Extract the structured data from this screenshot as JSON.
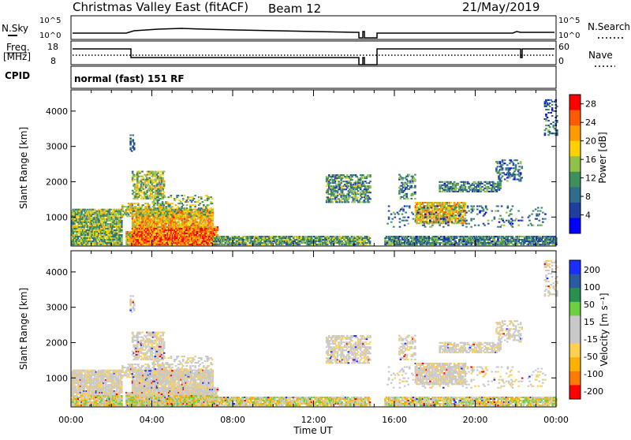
{
  "header": {
    "station": "Christmas Valley East (fitACF)",
    "beam": "Beam 12",
    "date": "21/May/2019"
  },
  "labels": {
    "nsky": "N.Sky",
    "nsearch": "N.Search",
    "freq_line1": "Freq.",
    "freq_line2": "[MHz]",
    "nave": "Nave",
    "cpid": "CPID",
    "cpid_value": "normal (fast) 151 RF",
    "noise_tick_hi": "10^5",
    "noise_tick_lo": "10^0",
    "freq_tick_hi": "18",
    "freq_tick_lo": "8",
    "nave_tick_hi": "60",
    "nave_tick_lo": "0"
  },
  "colors": {
    "power_scale": [
      "#0000ff",
      "#1f3fa0",
      "#2e6e8a",
      "#3f8f5a",
      "#8fc04a",
      "#ffd000",
      "#ff9a00",
      "#ff5a00",
      "#ff0000"
    ],
    "velocity_scale": [
      "#ff0000",
      "#ff7a00",
      "#ffb000",
      "#ffd050",
      "#c8c8c8",
      "#c8c8c8",
      "#6ccf40",
      "#2a8f50",
      "#2a5aa0",
      "#1a2fff"
    ]
  },
  "chart_data": [
    {
      "type": "heatmap",
      "name": "power",
      "xlabel": "Time UT",
      "ylabel": "Slant Range [km]",
      "x_ticks": [
        "00:00",
        "04:00",
        "08:00",
        "12:00",
        "16:00",
        "20:00",
        "00:00"
      ],
      "y_ticks": [
        1000,
        2000,
        3000,
        4000
      ],
      "ylim": [
        180,
        4600
      ],
      "xlim_hours": [
        0,
        24
      ],
      "colorbar_label": "Power [dB]",
      "colorbar_ticks": [
        4,
        8,
        12,
        16,
        20,
        24,
        28
      ],
      "colorbar_range": [
        0,
        30
      ]
    },
    {
      "type": "heatmap",
      "name": "velocity",
      "xlabel": "Time UT",
      "ylabel": "Slant Range [km]",
      "x_ticks": [
        "00:00",
        "04:00",
        "08:00",
        "12:00",
        "16:00",
        "20:00",
        "00:00"
      ],
      "y_ticks": [
        1000,
        2000,
        3000,
        4000
      ],
      "ylim": [
        180,
        4600
      ],
      "xlim_hours": [
        0,
        24
      ],
      "colorbar_label": "Velocity [m s⁻¹]",
      "colorbar_ticks": [
        200,
        100,
        50,
        15,
        -15,
        -50,
        -100,
        -200
      ]
    }
  ]
}
